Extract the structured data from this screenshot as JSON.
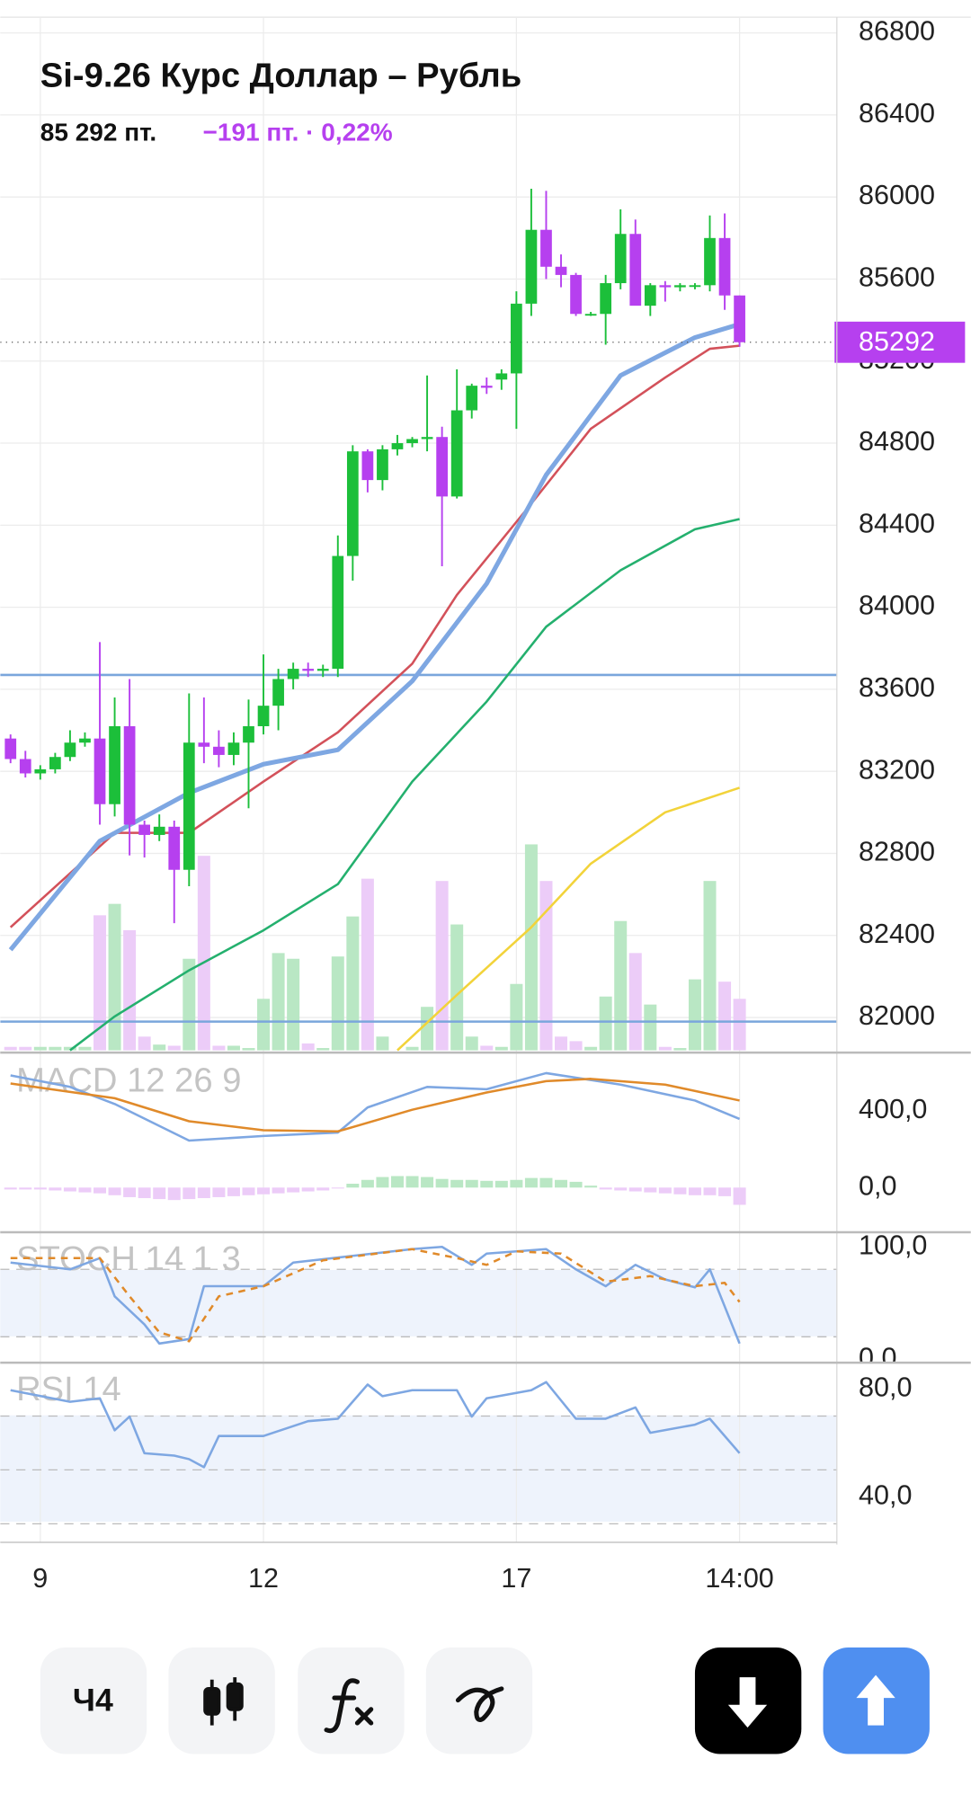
{
  "chart_data": {
    "type": "candlestick",
    "title": "Si-9.26 Курс Доллар – Рубль",
    "price_text": "85 292 пт.",
    "change_text": "−191 пт. · 0,22%",
    "last_price": 85292,
    "up_color": "#1cbf3a",
    "down_color": "#b640ef",
    "categories": [
      null,
      null,
      "9",
      null,
      null,
      null,
      null,
      null,
      null,
      null,
      null,
      null,
      null,
      null,
      null,
      null,
      null,
      "12",
      null,
      null,
      null,
      null,
      null,
      null,
      null,
      null,
      null,
      null,
      null,
      null,
      null,
      null,
      null,
      null,
      "17",
      null,
      null,
      null,
      null,
      null,
      null,
      null,
      null,
      null,
      null,
      null,
      null,
      null,
      null,
      "14:00"
    ],
    "open": [
      83360,
      83260,
      83190,
      83210,
      83270,
      83340,
      83360,
      83040,
      83420,
      82940,
      82890,
      82930,
      82720,
      83340,
      83320,
      83280,
      83340,
      83420,
      83520,
      83650,
      83700,
      83690,
      83700,
      84250,
      84760,
      84620,
      84770,
      84800,
      84820,
      84830,
      84540,
      84960,
      85080,
      85110,
      85140,
      85480,
      85840,
      85660,
      85620,
      85430,
      85430,
      85580,
      85820,
      85470,
      85570,
      85560,
      85570,
      85570,
      85800,
      85520
    ],
    "high": [
      83380,
      83300,
      83230,
      83290,
      83400,
      83390,
      83830,
      83560,
      83650,
      82960,
      82990,
      82960,
      83580,
      83560,
      83400,
      83390,
      83550,
      83770,
      83700,
      83730,
      83730,
      83720,
      84350,
      84790,
      84770,
      84790,
      84840,
      84830,
      85130,
      84880,
      85160,
      85090,
      85120,
      85160,
      85540,
      86040,
      86030,
      85720,
      85630,
      85440,
      85620,
      85940,
      85890,
      85580,
      85590,
      85580,
      85580,
      85910,
      85920,
      85520
    ],
    "low": [
      83240,
      83170,
      83160,
      83190,
      83250,
      83320,
      82940,
      82980,
      82790,
      82780,
      82860,
      82460,
      82640,
      83240,
      83220,
      83230,
      83020,
      83380,
      83400,
      83600,
      83660,
      83660,
      83660,
      84130,
      84560,
      84570,
      84740,
      84780,
      84760,
      84200,
      84530,
      84920,
      85040,
      85060,
      84870,
      85420,
      85600,
      85560,
      85420,
      85420,
      85280,
      85550,
      85480,
      85420,
      85490,
      85540,
      85550,
      85540,
      85450,
      85270
    ],
    "close": [
      83260,
      83190,
      83210,
      83270,
      83340,
      83360,
      83040,
      83420,
      82940,
      82890,
      82930,
      82720,
      83340,
      83320,
      83280,
      83340,
      83420,
      83520,
      83650,
      83700,
      83690,
      83700,
      84250,
      84760,
      84620,
      84770,
      84800,
      84820,
      84830,
      84540,
      84960,
      85080,
      85070,
      85140,
      85480,
      85840,
      85660,
      85620,
      85430,
      85430,
      85580,
      85820,
      85470,
      85570,
      85560,
      85570,
      85570,
      85800,
      85520,
      85292
    ],
    "volume": [
      3,
      3,
      3,
      3,
      3,
      3,
      118,
      128,
      105,
      12,
      5,
      4,
      80,
      170,
      4,
      4,
      2,
      45,
      85,
      80,
      6,
      2,
      82,
      117,
      150,
      12,
      0,
      3,
      38,
      148,
      110,
      12,
      4,
      3,
      58,
      180,
      148,
      12,
      8,
      3,
      47,
      113,
      85,
      40,
      3,
      2,
      62,
      148,
      60,
      45
    ],
    "ylim": [
      81840,
      86860
    ],
    "yticks": [
      82000,
      82400,
      82800,
      83200,
      83600,
      84000,
      84400,
      84800,
      85200,
      85600,
      86000,
      86400,
      86800
    ],
    "hlines": [
      83670,
      81980
    ],
    "hline_color": "#7aa6dc",
    "series": [
      {
        "color": "#f2d33a",
        "x": [
          26,
          30,
          35,
          39,
          44,
          49
        ],
        "values": [
          81840,
          82110,
          82440,
          82750,
          83000,
          83120
        ]
      },
      {
        "color": "#24b06e",
        "x": [
          4,
          7,
          12,
          17,
          22,
          27,
          32,
          36,
          41,
          46,
          49
        ],
        "values": [
          81840,
          82005,
          82230,
          82425,
          82650,
          83150,
          83540,
          83905,
          84180,
          84380,
          84430
        ]
      },
      {
        "color": "#d3515a",
        "x": [
          0,
          7,
          12,
          17,
          22,
          27,
          30,
          35,
          39,
          44,
          47,
          49
        ],
        "values": [
          82440,
          82900,
          82900,
          83150,
          83390,
          83725,
          84060,
          84505,
          84870,
          85120,
          85260,
          85275
        ]
      },
      {
        "color": "#7ea7e2",
        "x": [
          0,
          6,
          12,
          17,
          22,
          27,
          32,
          36,
          41,
          46,
          49
        ],
        "values": [
          82330,
          82860,
          83095,
          83235,
          83305,
          83640,
          84115,
          84645,
          85130,
          85315,
          85380
        ]
      }
    ],
    "macd": {
      "title": "MACD 12 26 9",
      "ylim": [
        -221,
        692
      ],
      "yticks": [
        {
          "value": 400,
          "label": "400,0"
        },
        {
          "value": 0,
          "label": "0,0"
        }
      ],
      "histogram": [
        -10,
        -10,
        -10,
        -15,
        -20,
        -25,
        -30,
        -40,
        -50,
        -55,
        -60,
        -65,
        -60,
        -55,
        -50,
        -45,
        -40,
        -35,
        -30,
        -25,
        -20,
        -15,
        -5,
        20,
        40,
        55,
        60,
        60,
        55,
        45,
        40,
        40,
        35,
        35,
        40,
        50,
        50,
        40,
        30,
        10,
        -10,
        -15,
        -20,
        -25,
        -30,
        -35,
        -40,
        -40,
        -45,
        -90
      ],
      "series": [
        {
          "color": "#7ea7e2",
          "x": [
            0,
            4,
            7,
            12,
            17,
            22,
            24,
            28,
            32,
            36,
            41,
            46,
            49
          ],
          "values": [
            585,
            525,
            436,
            245,
            269,
            287,
            418,
            525,
            513,
            597,
            537,
            454,
            358
          ]
        },
        {
          "color": "#e08a2a",
          "x": [
            0,
            7,
            12,
            17,
            22,
            27,
            32,
            36,
            39,
            44,
            49
          ],
          "values": [
            543,
            466,
            346,
            299,
            293,
            406,
            496,
            555,
            567,
            537,
            454
          ]
        }
      ]
    },
    "stoch": {
      "title": "STOCH 14 1 3",
      "ylim": [
        -2,
        112
      ],
      "yticks": [
        {
          "value": 100,
          "label": "100,0"
        },
        {
          "value": 0,
          "label": "0,0"
        }
      ],
      "guides": [
        80,
        20
      ],
      "series": [
        {
          "color": "#7ea7e2",
          "x": [
            0,
            4,
            6,
            7,
            9,
            10,
            12,
            13,
            17,
            19,
            23,
            27,
            29,
            31,
            32,
            34,
            36,
            38,
            40,
            42,
            44,
            46,
            47,
            49
          ],
          "values": [
            86,
            80,
            90,
            56,
            31,
            14,
            18,
            65,
            65,
            86,
            92,
            98,
            100,
            84,
            94,
            96,
            98,
            80,
            65,
            84,
            71,
            64,
            80,
            14
          ]
        },
        {
          "color": "#e08a2a",
          "dashed": true,
          "x": [
            0,
            6,
            8,
            10,
            12,
            14,
            17,
            21,
            27,
            30,
            32,
            34,
            37,
            40,
            43,
            46,
            48,
            49
          ],
          "values": [
            90,
            90,
            56,
            24,
            16,
            56,
            65,
            88,
            98,
            90,
            84,
            96,
            94,
            69,
            74,
            65,
            68,
            51
          ]
        }
      ]
    },
    "rsi": {
      "title": "RSI 14",
      "ylim": [
        24.4,
        89.4
      ],
      "yticks": [
        {
          "value": 80,
          "label": "80,0"
        },
        {
          "value": 40,
          "label": "40,0"
        }
      ],
      "guides": [
        70,
        50,
        30
      ],
      "series": [
        {
          "color": "#7ea7e2",
          "x": [
            0,
            4,
            6,
            7,
            8,
            9,
            11,
            12,
            13,
            14,
            17,
            20,
            22,
            24,
            25,
            27,
            30,
            31,
            32,
            35,
            36,
            38,
            40,
            42,
            43,
            46,
            47,
            49
          ],
          "values": [
            79.6,
            75.3,
            76.6,
            64.7,
            69.8,
            56.2,
            55.3,
            54,
            51,
            62.6,
            62.6,
            68.1,
            69,
            81.7,
            77.4,
            79.6,
            79.6,
            69.8,
            76.6,
            79.6,
            82.6,
            69,
            69,
            73.2,
            63.8,
            66.8,
            69,
            56.2
          ]
        }
      ]
    }
  },
  "toolbar": {
    "timeframe": "Ч4"
  }
}
